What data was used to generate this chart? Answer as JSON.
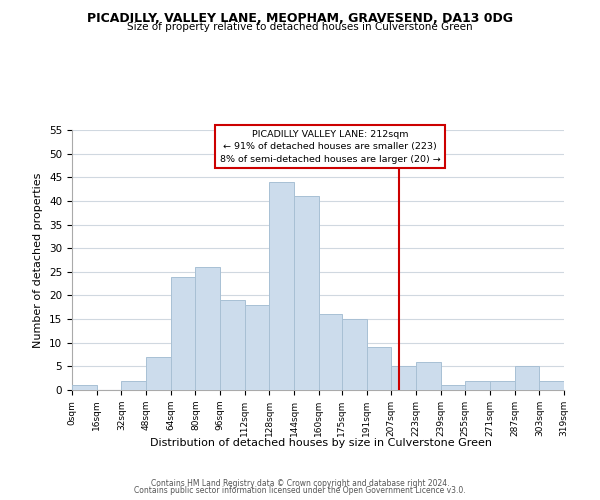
{
  "title": "PICADILLY, VALLEY LANE, MEOPHAM, GRAVESEND, DA13 0DG",
  "subtitle": "Size of property relative to detached houses in Culverstone Green",
  "xlabel": "Distribution of detached houses by size in Culverstone Green",
  "ylabel": "Number of detached properties",
  "bar_color": "#ccdcec",
  "bar_edgecolor": "#a8c0d4",
  "background_color": "#ffffff",
  "grid_color": "#d0d8e0",
  "vline_x": 212,
  "vline_color": "#cc0000",
  "annotation_title": "PICADILLY VALLEY LANE: 212sqm",
  "annotation_line1": "← 91% of detached houses are smaller (223)",
  "annotation_line2": "8% of semi-detached houses are larger (20) →",
  "bins": [
    0,
    16,
    32,
    48,
    64,
    80,
    96,
    112,
    128,
    144,
    160,
    175,
    191,
    207,
    223,
    239,
    255,
    271,
    287,
    303,
    319
  ],
  "counts": [
    1,
    0,
    2,
    7,
    24,
    26,
    19,
    18,
    44,
    41,
    16,
    15,
    9,
    5,
    6,
    1,
    2,
    2,
    5,
    2
  ],
  "xlim": [
    0,
    319
  ],
  "ylim": [
    0,
    55
  ],
  "yticks": [
    0,
    5,
    10,
    15,
    20,
    25,
    30,
    35,
    40,
    45,
    50,
    55
  ],
  "xtick_labels": [
    "0sqm",
    "16sqm",
    "32sqm",
    "48sqm",
    "64sqm",
    "80sqm",
    "96sqm",
    "112sqm",
    "128sqm",
    "144sqm",
    "160sqm",
    "175sqm",
    "191sqm",
    "207sqm",
    "223sqm",
    "239sqm",
    "255sqm",
    "271sqm",
    "287sqm",
    "303sqm",
    "319sqm"
  ],
  "xtick_positions": [
    0,
    16,
    32,
    48,
    64,
    80,
    96,
    112,
    128,
    144,
    160,
    175,
    191,
    207,
    223,
    239,
    255,
    271,
    287,
    303,
    319
  ],
  "footer1": "Contains HM Land Registry data © Crown copyright and database right 2024.",
  "footer2": "Contains public sector information licensed under the Open Government Licence v3.0."
}
